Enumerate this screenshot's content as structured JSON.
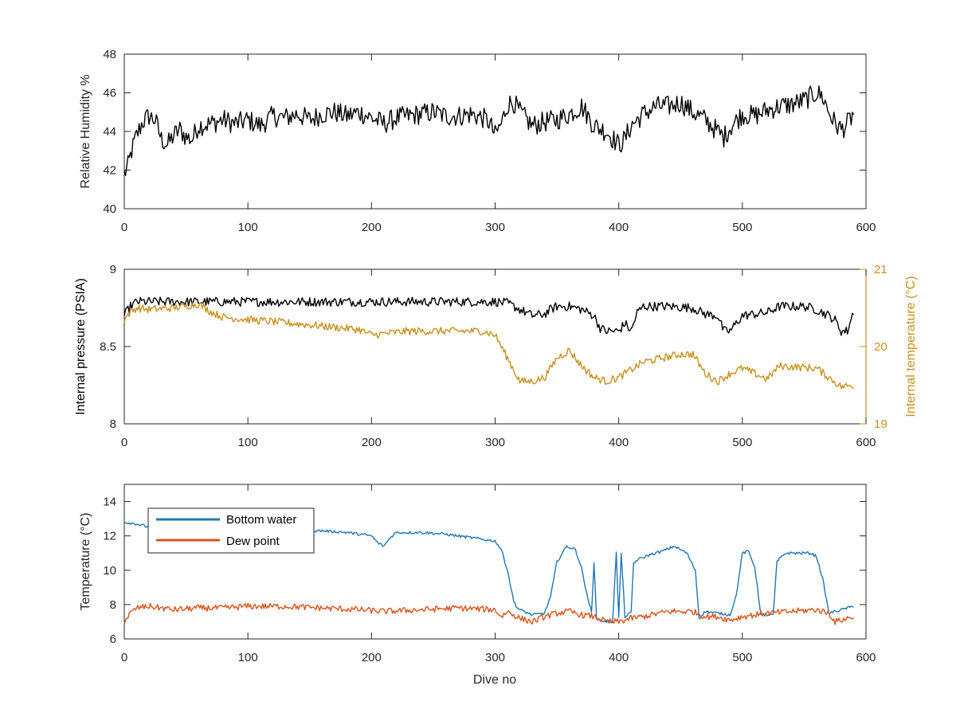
{
  "colors": {
    "black": "#000000",
    "humidity": "#000000",
    "pressure": "#000000",
    "internal_temp": "#c8901e",
    "bottom_water": "#1f77b4",
    "dew_point": "#d9541a",
    "axis": "#262626"
  },
  "chart_data": [
    {
      "type": "line",
      "title": "",
      "xlabel": "",
      "ylabel": "Relative Humidity %",
      "xlim": [
        0,
        600
      ],
      "ylim": [
        40,
        48
      ],
      "xticks": [
        0,
        100,
        200,
        300,
        400,
        500,
        600
      ],
      "xtick_labels": [
        "0",
        "100",
        "200",
        "300",
        "400",
        "500",
        "600"
      ],
      "yticks": [
        40,
        42,
        44,
        46,
        48
      ],
      "ytick_labels": [
        "40",
        "42",
        "44",
        "46",
        "48"
      ],
      "grid": false,
      "series": [
        {
          "color": "#000000",
          "x": [
            0,
            3,
            6,
            10,
            15,
            20,
            25,
            30,
            35,
            40,
            45,
            50,
            55,
            60,
            70,
            80,
            90,
            100,
            110,
            120,
            130,
            140,
            150,
            160,
            170,
            180,
            190,
            200,
            210,
            220,
            230,
            240,
            250,
            260,
            270,
            280,
            290,
            295,
            300,
            305,
            310,
            315,
            320,
            330,
            340,
            350,
            360,
            370,
            380,
            390,
            400,
            405,
            410,
            420,
            430,
            440,
            450,
            460,
            470,
            480,
            485,
            490,
            500,
            510,
            520,
            530,
            540,
            550,
            560,
            565,
            570,
            575,
            580,
            585,
            590
          ],
          "y": [
            41.8,
            42.2,
            43.0,
            43.8,
            44.5,
            44.8,
            44.6,
            43.6,
            43.3,
            43.8,
            44.1,
            43.7,
            43.6,
            44.3,
            44.4,
            44.6,
            44.4,
            44.6,
            44.3,
            44.8,
            44.7,
            44.9,
            44.6,
            44.9,
            45.0,
            44.8,
            45.0,
            44.7,
            44.4,
            44.7,
            44.8,
            44.9,
            45.0,
            44.8,
            44.8,
            44.9,
            44.7,
            44.5,
            43.8,
            44.4,
            45.4,
            45.5,
            45.0,
            44.3,
            44.5,
            44.6,
            44.9,
            45.3,
            44.3,
            44.0,
            43.3,
            43.6,
            44.3,
            44.9,
            45.3,
            45.3,
            45.5,
            45.0,
            44.6,
            44.0,
            43.7,
            44.2,
            44.9,
            44.8,
            45.1,
            45.3,
            45.4,
            45.6,
            46.0,
            45.8,
            45.0,
            44.4,
            44.1,
            44.4,
            44.9
          ],
          "noise": 0.55
        }
      ]
    },
    {
      "type": "line",
      "title": "",
      "xlabel": "",
      "ylabel": "Internal pressure (PSIA)",
      "ylabel_right": "Internal temperature (°C)",
      "xlim": [
        0,
        600
      ],
      "ylim": [
        8,
        9
      ],
      "ylim_right": [
        19,
        21
      ],
      "xticks": [
        0,
        100,
        200,
        300,
        400,
        500,
        600
      ],
      "xtick_labels": [
        "0",
        "100",
        "200",
        "300",
        "400",
        "500",
        "600"
      ],
      "yticks": [
        8,
        8.5,
        9
      ],
      "ytick_labels": [
        "8",
        "8.5",
        "9"
      ],
      "yticks_right": [
        19,
        20,
        21
      ],
      "ytick_labels_right": [
        "19",
        "20",
        "21"
      ],
      "grid": false,
      "series": [
        {
          "axis": "left",
          "color": "#000000",
          "x": [
            0,
            5,
            10,
            100,
            200,
            250,
            300,
            310,
            320,
            330,
            340,
            345,
            350,
            360,
            370,
            380,
            385,
            390,
            395,
            400,
            405,
            410,
            415,
            420,
            440,
            460,
            470,
            480,
            485,
            490,
            500,
            510,
            520,
            525,
            530,
            550,
            560,
            570,
            575,
            580,
            585,
            590
          ],
          "y": [
            8.7,
            8.76,
            8.79,
            8.79,
            8.79,
            8.79,
            8.79,
            8.78,
            8.74,
            8.7,
            8.71,
            8.74,
            8.76,
            8.76,
            8.74,
            8.7,
            8.62,
            8.6,
            8.6,
            8.6,
            8.65,
            8.6,
            8.72,
            8.76,
            8.76,
            8.75,
            8.71,
            8.7,
            8.6,
            8.6,
            8.7,
            8.71,
            8.72,
            8.74,
            8.76,
            8.76,
            8.74,
            8.7,
            8.67,
            8.6,
            8.6,
            8.73
          ],
          "noise": 0.03
        },
        {
          "axis": "right",
          "color": "#c8901e",
          "x": [
            0,
            5,
            10,
            20,
            40,
            60,
            70,
            80,
            100,
            150,
            190,
            200,
            230,
            260,
            290,
            300,
            310,
            320,
            330,
            340,
            350,
            360,
            370,
            380,
            390,
            400,
            410,
            420,
            450,
            460,
            470,
            480,
            490,
            500,
            510,
            520,
            530,
            560,
            570,
            580,
            590
          ],
          "y": [
            20.35,
            20.45,
            20.5,
            20.48,
            20.5,
            20.55,
            20.45,
            20.38,
            20.35,
            20.28,
            20.22,
            20.15,
            20.2,
            20.2,
            20.2,
            20.15,
            19.85,
            19.55,
            19.55,
            19.6,
            19.85,
            19.95,
            19.75,
            19.6,
            19.55,
            19.6,
            19.7,
            19.8,
            19.9,
            19.9,
            19.65,
            19.55,
            19.65,
            19.72,
            19.65,
            19.58,
            19.75,
            19.72,
            19.6,
            19.48,
            19.5
          ],
          "noise": 0.05
        }
      ]
    },
    {
      "type": "line",
      "title": "",
      "xlabel": "Dive no",
      "ylabel": "Temperature (°C)",
      "xlim": [
        0,
        600
      ],
      "ylim": [
        6,
        15
      ],
      "xticks": [
        0,
        100,
        200,
        300,
        400,
        500,
        600
      ],
      "xtick_labels": [
        "0",
        "100",
        "200",
        "300",
        "400",
        "500",
        "600"
      ],
      "yticks": [
        6,
        8,
        10,
        12,
        14
      ],
      "ytick_labels": [
        "6",
        "8",
        "10",
        "12",
        "14"
      ],
      "grid": false,
      "legend": {
        "placement": "top-left"
      },
      "series": [
        {
          "name": "Bottom water",
          "color": "#1f77b4",
          "x": [
            0,
            10,
            20,
            40,
            60,
            80,
            100,
            120,
            140,
            160,
            180,
            200,
            205,
            210,
            215,
            220,
            240,
            260,
            280,
            300,
            305,
            310,
            315,
            318,
            320,
            330,
            340,
            345,
            350,
            358,
            365,
            370,
            375,
            378,
            380,
            382,
            385,
            390,
            395,
            398,
            400,
            402,
            405,
            410,
            412,
            415,
            425,
            435,
            445,
            455,
            462,
            465,
            470,
            480,
            490,
            495,
            500,
            505,
            510,
            515,
            525,
            528,
            535,
            545,
            555,
            560,
            565,
            570,
            580,
            590
          ],
          "y": [
            12.8,
            12.7,
            12.5,
            12.6,
            12.4,
            12.5,
            12.3,
            12.2,
            12.3,
            12.3,
            12.2,
            12.0,
            11.6,
            11.4,
            11.9,
            12.2,
            12.2,
            12.1,
            11.9,
            11.7,
            11.2,
            10.0,
            8.2,
            7.8,
            7.7,
            7.4,
            7.5,
            8.5,
            10.5,
            11.4,
            11.2,
            10.1,
            8.3,
            7.6,
            10.5,
            7.2,
            7.1,
            7.0,
            7.0,
            11.0,
            7.2,
            11.0,
            7.3,
            7.5,
            10.4,
            10.6,
            10.9,
            11.1,
            11.4,
            11.0,
            10.0,
            7.2,
            7.6,
            7.5,
            7.4,
            8.5,
            11.0,
            11.1,
            10.2,
            7.4,
            7.4,
            10.5,
            11.0,
            11.0,
            11.0,
            10.8,
            9.5,
            7.5,
            7.7,
            7.9
          ],
          "noise": 0.08
        },
        {
          "name": "Dew point",
          "color": "#d9541a",
          "x": [
            0,
            5,
            10,
            20,
            40,
            60,
            80,
            100,
            130,
            160,
            190,
            210,
            240,
            270,
            300,
            305,
            310,
            320,
            330,
            340,
            350,
            360,
            370,
            380,
            390,
            400,
            410,
            420,
            440,
            460,
            470,
            480,
            490,
            500,
            520,
            540,
            560,
            570,
            575,
            580,
            590
          ],
          "y": [
            7.0,
            7.5,
            7.8,
            7.9,
            7.7,
            7.8,
            7.8,
            7.9,
            7.9,
            7.8,
            7.7,
            7.6,
            7.7,
            7.8,
            7.7,
            7.3,
            7.6,
            7.2,
            7.0,
            7.3,
            7.5,
            7.6,
            7.4,
            7.3,
            7.0,
            7.0,
            7.2,
            7.3,
            7.6,
            7.6,
            7.3,
            7.3,
            7.1,
            7.3,
            7.5,
            7.6,
            7.7,
            7.5,
            7.0,
            7.1,
            7.3
          ],
          "noise": 0.18
        }
      ]
    }
  ]
}
